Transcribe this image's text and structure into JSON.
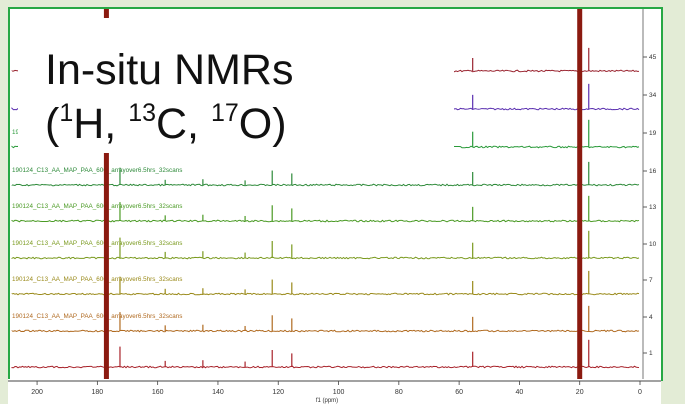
{
  "title": {
    "line1": "In-situ NMRs",
    "line2_parts": [
      "(",
      "1",
      "H, ",
      "13",
      "C, ",
      "17",
      "O)"
    ]
  },
  "colors": {
    "background": "#e3ecd6",
    "frame_border": "#27a844",
    "reference_line": "#8b1a10"
  },
  "chart_data": {
    "type": "line",
    "title": "",
    "xlabel": "f1 (ppm)",
    "ylabel": "",
    "xlim": [
      205,
      0
    ],
    "x_ticks": [
      200,
      180,
      160,
      140,
      120,
      100,
      80,
      60,
      40,
      20,
      0
    ],
    "x_inverted": true,
    "y_tick_labels": [
      "45",
      "34",
      "19",
      "16",
      "13",
      "10",
      "7",
      "4",
      "1"
    ],
    "reference_lines_ppm": [
      177,
      20
    ],
    "peaks_ppm": [
      {
        "x": 177,
        "height": 1.0
      },
      {
        "x": 172.5,
        "height": 0.6
      },
      {
        "x": 157.5,
        "height": 0.18
      },
      {
        "x": 145,
        "height": 0.2
      },
      {
        "x": 131,
        "height": 0.16
      },
      {
        "x": 122,
        "height": 0.5
      },
      {
        "x": 115.5,
        "height": 0.4
      },
      {
        "x": 55.5,
        "height": 0.45
      },
      {
        "x": 20,
        "height": 1.0
      },
      {
        "x": 17,
        "height": 0.8
      }
    ],
    "trace_label": "190124_C13_AA_MAP_PAA_60C_arrayover6.5hrs_32scans",
    "series": [
      {
        "tick": "45",
        "color": "#9a2430",
        "label": ""
      },
      {
        "tick": "34",
        "color": "#5a2fb0",
        "label": ""
      },
      {
        "tick": "19",
        "color": "#2a9a3a",
        "label": "190124_C13_AA_MAP_PAA_60C_arrayover6.5hrs_32scans"
      },
      {
        "tick": "16",
        "color": "#2e8a3a",
        "label": "190124_C13_AA_MAP_PAA_60C_arrayover6.5hrs_32scans"
      },
      {
        "tick": "13",
        "color": "#4a9a24",
        "label": "190124_C13_AA_MAP_PAA_60C_arrayover6.5hrs_32scans"
      },
      {
        "tick": "10",
        "color": "#7a9a1e",
        "label": "190124_C13_AA_MAP_PAA_60C_arrayover6.5hrs_32scans"
      },
      {
        "tick": "7",
        "color": "#9a8a1a",
        "label": "190124_C13_AA_MAP_PAA_60C_arrayover6.5hrs_32scans"
      },
      {
        "tick": "4",
        "color": "#b06a20",
        "label": "190124_C13_AA_MAP_PAA_60C_arrayover6.5hrs_32scans"
      },
      {
        "tick": "1",
        "color": "#a8222a",
        "label": ""
      }
    ]
  }
}
